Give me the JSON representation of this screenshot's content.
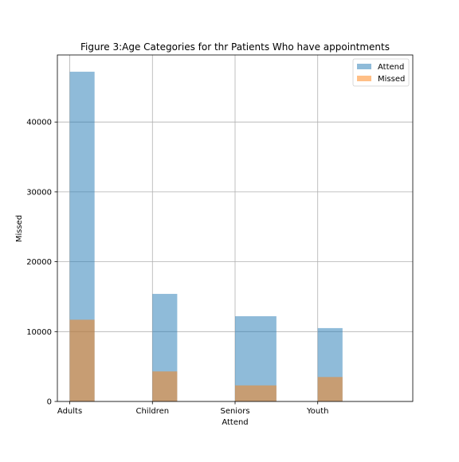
{
  "chart_data": {
    "type": "bar",
    "title": "Figure 3:Age Categories for thr Patients Who have appointments",
    "xlabel": "Attend",
    "ylabel": "Missed",
    "categories": [
      "Adults",
      "Children",
      "Seniors",
      "Youth"
    ],
    "x_positions": [
      0,
      1,
      2,
      3
    ],
    "bar_ranges": [
      [
        0,
        0.3
      ],
      [
        1,
        1.3
      ],
      [
        2,
        2.5
      ],
      [
        3,
        3.3
      ]
    ],
    "bar_ranges_note_hidden": "",
    "series": [
      {
        "name": "Attend",
        "values": [
          47200,
          15400,
          12200,
          10500
        ],
        "color": "#1f77b4",
        "opacity": 0.5
      },
      {
        "name": "Missed",
        "values": [
          11700,
          4300,
          2300,
          3500
        ],
        "color": "#ff7f0e",
        "opacity": 0.5
      }
    ],
    "ylim": [
      0,
      49600
    ],
    "xlim": [
      -0.15,
      4.15
    ],
    "yticks": [
      0,
      10000,
      20000,
      30000,
      40000
    ],
    "grid": true,
    "legend_position": "top-right"
  }
}
